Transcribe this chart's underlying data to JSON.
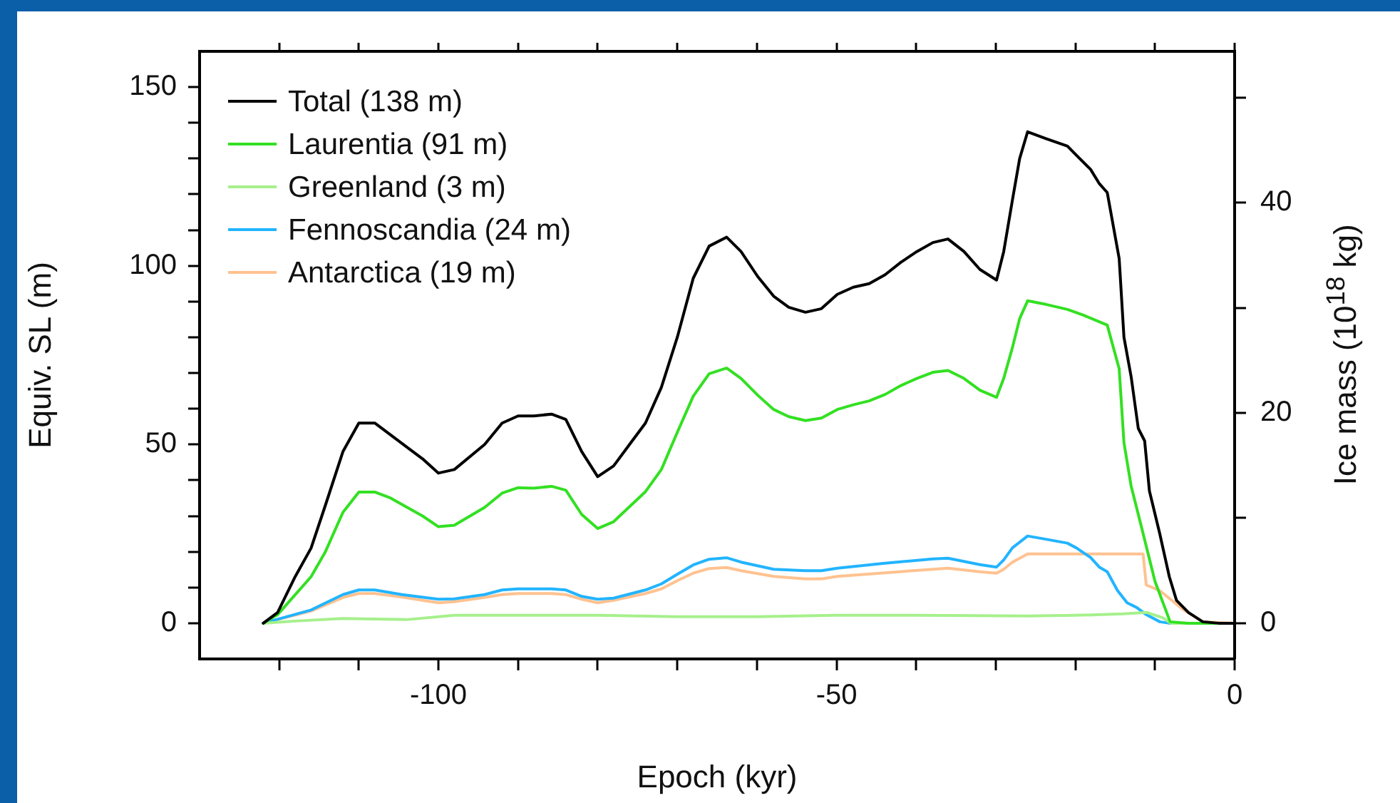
{
  "chart_data": {
    "type": "line",
    "xlabel": "Epoch (kyr)",
    "ylabel": "Equiv. SL (m)",
    "y2label": "Ice mass (10$^{18}$ kg)",
    "xlim": [
      -130,
      0
    ],
    "xticks": [
      {
        "value": -120,
        "label": null
      },
      {
        "value": -110,
        "label": null
      },
      -100,
      {
        "value": -90,
        "label": null
      },
      {
        "value": -80,
        "label": null
      },
      {
        "value": -70,
        "label": null
      },
      {
        "value": -60,
        "label": null
      },
      -50,
      {
        "value": -40,
        "label": null
      },
      {
        "value": -30,
        "label": null
      },
      {
        "value": -20,
        "label": null
      },
      {
        "value": -10,
        "label": null
      },
      0
    ],
    "ylim": [
      -10,
      160
    ],
    "yticks": [
      0,
      {
        "value": 10,
        "label": null
      },
      {
        "value": 20,
        "label": null
      },
      {
        "value": 30,
        "label": null
      },
      {
        "value": 40,
        "label": null
      },
      50,
      {
        "value": 60,
        "label": null
      },
      {
        "value": 70,
        "label": null
      },
      {
        "value": 80,
        "label": null
      },
      {
        "value": 90,
        "label": null
      },
      100,
      {
        "value": 110,
        "label": null
      },
      {
        "value": 120,
        "label": null
      },
      {
        "value": 130,
        "label": null
      },
      {
        "value": 140,
        "label": null
      },
      150
    ],
    "y2lim": [
      -3.4,
      54.4
    ],
    "y2ticks": [
      0,
      {
        "value": 10,
        "label": null
      },
      20,
      {
        "value": 30,
        "label": null
      },
      40,
      {
        "value": 50,
        "label": null
      }
    ],
    "grid": false,
    "legend": "top left",
    "marker": "none",
    "line_style": "solid",
    "series": [
      {
        "name": "Total (138 m)",
        "color": "#000000",
        "x": [
          -122,
          -120.2,
          -118,
          -116,
          -114.2,
          -112,
          -110,
          -108,
          -103.8,
          -102,
          -100,
          -98,
          -94.2,
          -92,
          -90,
          -88,
          -85.8,
          -84,
          -82,
          -80,
          -78,
          -76,
          -74,
          -72,
          -70,
          -68,
          -66,
          -63.8,
          -62,
          -59.9,
          -57.9,
          -56,
          -53.9,
          -51.9,
          -49.9,
          -47.9,
          -45.9,
          -43.9,
          -41.9,
          -39.9,
          -37.9,
          -36,
          -34,
          -32,
          -29.9,
          -29,
          -27.9,
          -27,
          -26,
          -23.7,
          -21,
          -19.9,
          -18.1,
          -17,
          -16,
          -14.5,
          -13.9,
          -13,
          -12.1,
          -11.3,
          -10.7,
          -9.4,
          -8.2,
          -7.3,
          -5.8,
          -4,
          -2,
          0
        ],
        "values": [
          0,
          3,
          13,
          21,
          33,
          48,
          56,
          56,
          49,
          46,
          42,
          43,
          50,
          56,
          58,
          58,
          58.5,
          57,
          48,
          41,
          44,
          50,
          56,
          66,
          80,
          96.5,
          105.5,
          108,
          104,
          97,
          91.5,
          88.4,
          87,
          88,
          92,
          94,
          95,
          97.5,
          101,
          104,
          106.5,
          107.5,
          104,
          99,
          96,
          104,
          118.5,
          130,
          137.5,
          135.6,
          133.5,
          131,
          127,
          123,
          120.5,
          102,
          80,
          69,
          54.5,
          51,
          37,
          25,
          13,
          6.4,
          3,
          0.4,
          0,
          0
        ]
      },
      {
        "name": "Laurentia (91 m)",
        "color": "#33e022",
        "x": [
          -122,
          -120.2,
          -116,
          -114.2,
          -112,
          -110,
          -108,
          -106,
          -102,
          -100,
          -98,
          -94.2,
          -92,
          -90,
          -88,
          -85.8,
          -84,
          -82,
          -80,
          -78,
          -74,
          -72,
          -70,
          -68,
          -66,
          -63.8,
          -62,
          -59.9,
          -57.9,
          -56,
          -53.9,
          -51.9,
          -49.9,
          -47.9,
          -45.9,
          -43.9,
          -41.9,
          -39.9,
          -37.9,
          -36,
          -34,
          -32,
          -29.9,
          -29,
          -27.9,
          -27,
          -26,
          -23.7,
          -21,
          -19,
          -16,
          -14.5,
          -13.9,
          -13,
          -11.8,
          -10,
          -8.1,
          -5.8,
          0
        ],
        "values": [
          0,
          2.4,
          13,
          20,
          31,
          36.7,
          36.7,
          35,
          30,
          27,
          27.4,
          32.4,
          36.4,
          37.9,
          37.8,
          38.3,
          37.2,
          30.4,
          26.5,
          28.4,
          36.8,
          43,
          53.4,
          63.5,
          69.8,
          71.4,
          68.5,
          63.8,
          59.8,
          57.8,
          56.7,
          57.4,
          59.8,
          61.1,
          62.2,
          64,
          66.5,
          68.5,
          70.2,
          70.7,
          68.5,
          65.2,
          63.2,
          68.5,
          77.2,
          85.2,
          90.2,
          89.2,
          87.8,
          86.2,
          83.4,
          71.2,
          50.5,
          38.4,
          27.8,
          11.7,
          0.4,
          0,
          0
        ]
      },
      {
        "name": "Greenland (3 m)",
        "color": "#a6f08c",
        "x": [
          -122,
          -118,
          -112,
          -104,
          -98,
          -80,
          -70,
          -60,
          -50,
          -40,
          -26,
          -20,
          -14,
          -11,
          -9,
          -8,
          0
        ],
        "values": [
          0,
          0.6,
          1.3,
          1,
          2.2,
          2.2,
          1.8,
          1.8,
          2.2,
          2.2,
          2,
          2.2,
          2.6,
          3,
          1.5,
          0,
          0
        ]
      },
      {
        "name": "Fennoscandia (24 m)",
        "color": "#22b4ff",
        "x": [
          -122,
          -116,
          -112,
          -110,
          -108,
          -104.6,
          -100,
          -98,
          -94.2,
          -92,
          -90,
          -85.8,
          -84,
          -82,
          -80,
          -78,
          -74,
          -72,
          -70,
          -68,
          -66,
          -63.8,
          -62,
          -57.9,
          -53.9,
          -51.9,
          -49.9,
          -43.9,
          -37.9,
          -36,
          -32,
          -29.9,
          -29,
          -27.9,
          -26,
          -23.7,
          -21,
          -19.9,
          -18.1,
          -17,
          -16,
          -14.7,
          -13.5,
          -12.3,
          -11.1,
          -9.4,
          -8.2,
          0
        ],
        "values": [
          0,
          3.7,
          8,
          9.3,
          9.3,
          8,
          6.7,
          6.8,
          8,
          9.3,
          9.6,
          9.6,
          9.3,
          7.5,
          6.7,
          7,
          9.3,
          11,
          13.7,
          16.3,
          17.9,
          18.3,
          17.1,
          15.1,
          14.7,
          14.7,
          15.4,
          16.8,
          18,
          18.2,
          16.4,
          15.7,
          17.7,
          21.1,
          24.4,
          23.5,
          22.4,
          21.1,
          18.4,
          15.7,
          14.4,
          9.1,
          5.7,
          4.4,
          2.4,
          0.4,
          0,
          0
        ]
      },
      {
        "name": "Antarctica (19 m)",
        "color": "#ffc290",
        "x": [
          -122,
          -116,
          -112,
          -110,
          -108,
          -104.6,
          -100,
          -98,
          -94.2,
          -92,
          -90,
          -85.8,
          -84,
          -82,
          -80,
          -78,
          -74,
          -72,
          -70,
          -68,
          -66,
          -63.8,
          -62,
          -57.9,
          -53.9,
          -51.9,
          -49.9,
          -43.9,
          -37.9,
          -36,
          -32,
          -29.9,
          -29,
          -27.9,
          -26,
          -11.5,
          -11.1,
          -9.4,
          -7.9,
          -6.4,
          -4,
          0
        ],
        "values": [
          0,
          3.4,
          7.2,
          8.3,
          8.3,
          7.3,
          5.7,
          6,
          7.2,
          8,
          8.3,
          8.3,
          8,
          6.7,
          5.7,
          6.4,
          8.3,
          9.6,
          11.9,
          14,
          15.3,
          15.6,
          14.7,
          13.1,
          12.4,
          12.4,
          13.1,
          14.1,
          15.1,
          15.4,
          14.4,
          14,
          15.1,
          17.1,
          19.4,
          19.4,
          10.7,
          9.1,
          6.4,
          3.7,
          0.4,
          0
        ]
      }
    ]
  }
}
